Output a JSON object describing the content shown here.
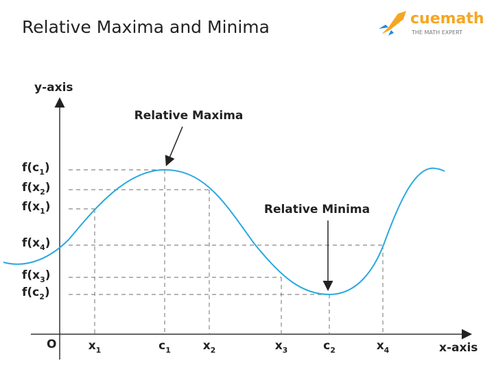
{
  "header": {
    "title": "Relative Maxima and Minima"
  },
  "logo": {
    "brand": "cuemath",
    "tagline": "THE MATH EXPERT"
  },
  "axes": {
    "y_label": "y-axis",
    "x_label": "x-axis",
    "origin": "O"
  },
  "annotations": {
    "maxima": "Relative Maxima",
    "minima": "Relative Minima"
  },
  "x_labels": [
    {
      "base": "x",
      "sub": "1"
    },
    {
      "base": "c",
      "sub": "1"
    },
    {
      "base": "x",
      "sub": "2"
    },
    {
      "base": "x",
      "sub": "3"
    },
    {
      "base": "c",
      "sub": "2"
    },
    {
      "base": "x",
      "sub": "4"
    }
  ],
  "y_labels": [
    {
      "pre": "f(c",
      "sub": "1",
      "post": ")"
    },
    {
      "pre": "f(x",
      "sub": "2",
      "post": ")"
    },
    {
      "pre": "f(x",
      "sub": "1",
      "post": ")"
    },
    {
      "pre": "f(x",
      "sub": "4",
      "post": ")"
    },
    {
      "pre": "f(x",
      "sub": "3",
      "post": ")"
    },
    {
      "pre": "f(c",
      "sub": "2",
      "post": ")"
    }
  ]
}
